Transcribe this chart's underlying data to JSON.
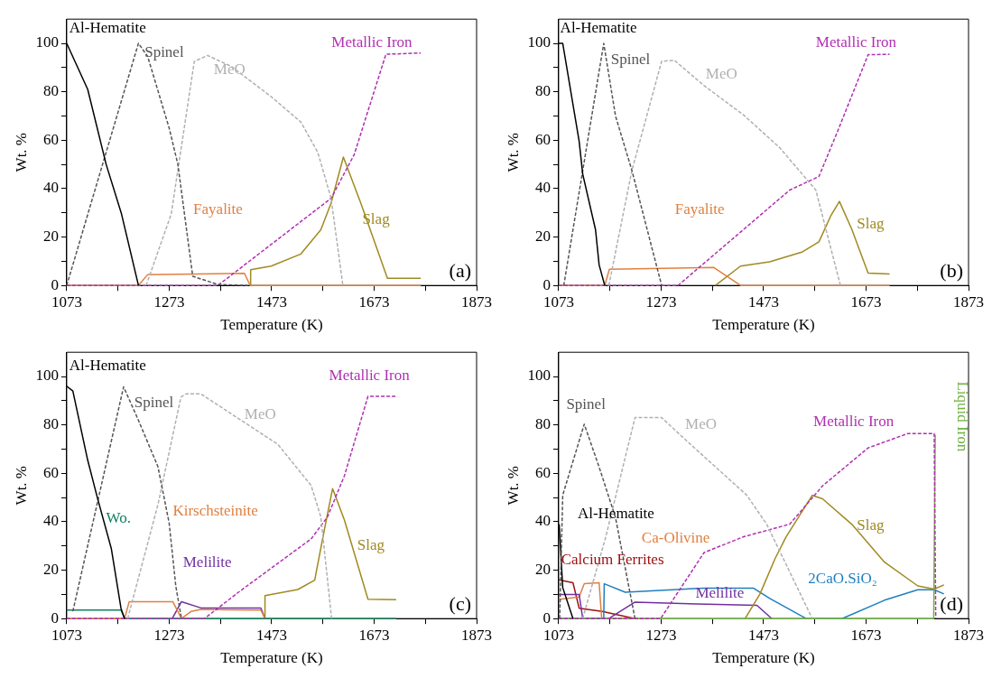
{
  "chart_data": [
    {
      "type": "line",
      "xlabel": "Temperature (K)",
      "ylabel": "Wt. %",
      "xlim": [
        1073,
        1873
      ],
      "ylim": [
        0,
        110
      ],
      "xticks": [
        1073,
        {
          "value": 1173,
          "label": null
        },
        1273,
        {
          "value": 1373,
          "label": null
        },
        1473,
        {
          "value": 1573,
          "label": null
        },
        1673,
        {
          "value": 1773,
          "label": null
        },
        1873
      ],
      "yticks": [
        0,
        {
          "value": 10,
          "label": null
        },
        20,
        {
          "value": 30,
          "label": null
        },
        40,
        {
          "value": 50,
          "label": null
        },
        60,
        {
          "value": 70,
          "label": null
        },
        80,
        {
          "value": 90,
          "label": null
        },
        100
      ],
      "grid": false,
      "marker": "none",
      "annotations": [
        "(a)"
      ],
      "series": [
        {
          "name": "Al-Hematite",
          "color": "#000000",
          "line_style": "solid",
          "x": [
            1073,
            1114,
            1150,
            1180,
            1213
          ],
          "values": [
            100,
            81,
            50,
            29.5,
            0
          ]
        },
        {
          "name": "Spinel",
          "color": "#555555",
          "line_style": "dashed",
          "x": [
            1073,
            1213,
            1231,
            1273,
            1290,
            1319,
            1368,
            1426
          ],
          "values": [
            0,
            100,
            94.6,
            65,
            50,
            3.8,
            0.4,
            0
          ]
        },
        {
          "name": "MeO",
          "color": "#b0b0b0",
          "line_style": "dashed",
          "x": [
            1228,
            1277,
            1322,
            1348,
            1394,
            1472,
            1530,
            1563,
            1589,
            1612
          ],
          "values": [
            0,
            29.5,
            92.5,
            95,
            90.5,
            78,
            67.5,
            55,
            36,
            0
          ]
        },
        {
          "name": "Metallic Iron",
          "color": "#b030b0",
          "line_style": "dashed",
          "x": [
            1073,
            1368,
            1589,
            1634,
            1696,
            1764
          ],
          "values": [
            0,
            0,
            36,
            54,
            95.5,
            96
          ]
        },
        {
          "name": "Fayalite",
          "color": "#e08040",
          "line_style": "solid",
          "x": [
            1073,
            1213,
            1231,
            1420,
            1431,
            1764
          ],
          "values": [
            0,
            0,
            4.5,
            5,
            0,
            0
          ]
        },
        {
          "name": "Slag",
          "color": "#a08a20",
          "line_style": "solid",
          "x": [
            1431,
            1432,
            1472,
            1530,
            1569,
            1589,
            1613,
            1647,
            1699,
            1764
          ],
          "values": [
            0,
            6.5,
            8,
            13,
            23,
            34,
            53,
            34,
            3,
            3
          ]
        }
      ]
    },
    {
      "type": "line",
      "xlabel": "Temperature (K)",
      "ylabel": "Wt. %",
      "xlim": [
        1073,
        1873
      ],
      "ylim": [
        0,
        110
      ],
      "xticks": [
        1073,
        {
          "value": 1173,
          "label": null
        },
        1273,
        {
          "value": 1373,
          "label": null
        },
        1473,
        {
          "value": 1573,
          "label": null
        },
        1673,
        {
          "value": 1773,
          "label": null
        },
        1873
      ],
      "yticks": [
        0,
        {
          "value": 10,
          "label": null
        },
        20,
        {
          "value": 30,
          "label": null
        },
        40,
        {
          "value": 50,
          "label": null
        },
        60,
        {
          "value": 70,
          "label": null
        },
        80,
        {
          "value": 90,
          "label": null
        },
        100
      ],
      "grid": false,
      "marker": "none",
      "annotations": [
        "(b)"
      ],
      "series": [
        {
          "name": "Al-Hematite",
          "color": "#000000",
          "line_style": "solid",
          "x": [
            1073,
            1081,
            1113,
            1120,
            1145,
            1152,
            1163
          ],
          "values": [
            100,
            100,
            59.6,
            46,
            23,
            8.5,
            0
          ]
        },
        {
          "name": "Spinel",
          "color": "#555555",
          "line_style": "dashed",
          "x": [
            1083,
            1161,
            1184,
            1216,
            1274
          ],
          "values": [
            0,
            100,
            70,
            47.5,
            0
          ]
        },
        {
          "name": "MeO",
          "color": "#b0b0b0",
          "line_style": "dashed",
          "x": [
            1171,
            1216,
            1274,
            1299,
            1357,
            1434,
            1504,
            1575,
            1623
          ],
          "values": [
            0,
            47.5,
            92.6,
            93,
            82.5,
            70.4,
            57,
            39.4,
            0
          ]
        },
        {
          "name": "Metallic Iron",
          "color": "#b030b0",
          "line_style": "dashed",
          "x": [
            1073,
            1306,
            1524,
            1581,
            1620,
            1677,
            1719
          ],
          "values": [
            0,
            0,
            39.4,
            45,
            65,
            95.3,
            95.5
          ]
        },
        {
          "name": "Fayalite",
          "color": "#e08040",
          "line_style": "solid",
          "x": [
            1073,
            1163,
            1172,
            1376,
            1428,
            1719
          ],
          "values": [
            0,
            0,
            6.7,
            7.4,
            0,
            0
          ]
        },
        {
          "name": "Slag",
          "color": "#a08a20",
          "line_style": "solid",
          "x": [
            1379,
            1428,
            1485,
            1549,
            1581,
            1604,
            1621,
            1645,
            1677,
            1719
          ],
          "values": [
            0,
            8,
            9.8,
            13.9,
            18,
            28.7,
            34.7,
            23.3,
            5.1,
            4.7
          ]
        }
      ]
    },
    {
      "type": "line",
      "xlabel": "Temperature (K)",
      "ylabel": "Wt. %",
      "xlim": [
        1073,
        1873
      ],
      "ylim": [
        0,
        110
      ],
      "xticks": [
        1073,
        {
          "value": 1173,
          "label": null
        },
        1273,
        {
          "value": 1373,
          "label": null
        },
        1473,
        {
          "value": 1573,
          "label": null
        },
        1673,
        {
          "value": 1773,
          "label": null
        },
        1873
      ],
      "yticks": [
        0,
        {
          "value": 10,
          "label": null
        },
        20,
        {
          "value": 30,
          "label": null
        },
        40,
        {
          "value": 50,
          "label": null
        },
        60,
        {
          "value": 70,
          "label": null
        },
        80,
        {
          "value": 90,
          "label": null
        },
        100
      ],
      "grid": false,
      "marker": "none",
      "annotations": [
        "(c)"
      ],
      "series": [
        {
          "name": "Al-Hematite",
          "color": "#000000",
          "line_style": "solid",
          "x": [
            1073,
            1085,
            1114,
            1133,
            1160,
            1179,
            1186
          ],
          "values": [
            96,
            94,
            65.4,
            49.8,
            29,
            4.2,
            0
          ]
        },
        {
          "name": "Spinel",
          "color": "#555555",
          "line_style": "dashed",
          "x": [
            1085,
            1184,
            1212,
            1251,
            1273,
            1286,
            1297
          ],
          "values": [
            3,
            95.7,
            82.4,
            62.8,
            39.4,
            13.3,
            0
          ]
        },
        {
          "name": "MeO",
          "color": "#b0b0b0",
          "line_style": "dashed",
          "x": [
            1192,
            1251,
            1296,
            1306,
            1335,
            1420,
            1485,
            1550,
            1569,
            1589,
            1590
          ],
          "values": [
            0,
            47,
            91.5,
            92.8,
            92.8,
            81,
            72,
            55,
            42,
            2,
            0
          ]
        },
        {
          "name": "Metallic Iron",
          "color": "#b030b0",
          "line_style": "dashed",
          "x": [
            1073,
            1342,
            1407,
            1550,
            1582,
            1615,
            1661,
            1716
          ],
          "values": [
            0,
            0,
            10.7,
            32.9,
            42,
            59,
            91.8,
            91.8
          ]
        },
        {
          "name": "Wo.",
          "color": "#108060",
          "line_style": "solid",
          "x": [
            1073,
            1179,
            1186,
            1716
          ],
          "values": [
            3.5,
            3.5,
            0,
            0
          ]
        },
        {
          "name": "Kirschsteinite",
          "color": "#e08040",
          "line_style": "solid",
          "x": [
            1073,
            1186,
            1195,
            1280,
            1297,
            1316,
            1335,
            1452,
            1460,
            1716
          ],
          "values": [
            0,
            0,
            7,
            7,
            0,
            3,
            3.8,
            3.5,
            0,
            0
          ]
        },
        {
          "name": "Melilite",
          "color": "#7030a0",
          "line_style": "solid",
          "x": [
            1279,
            1297,
            1335,
            1452,
            1460
          ],
          "values": [
            0,
            7,
            4.4,
            4.4,
            0
          ]
        },
        {
          "name": "Slag",
          "color": "#a08a20",
          "line_style": "solid",
          "x": [
            1459,
            1460,
            1524,
            1557,
            1576,
            1592,
            1615,
            1661,
            1716
          ],
          "values": [
            0,
            9.5,
            12,
            15.9,
            36.8,
            53.7,
            40.7,
            8,
            7.8
          ]
        }
      ]
    },
    {
      "type": "line",
      "xlabel": "Temperature (K)",
      "ylabel": "Wt. %",
      "xlim": [
        1073,
        1873
      ],
      "ylim": [
        0,
        110
      ],
      "xticks": [
        1073,
        {
          "value": 1173,
          "label": null
        },
        1273,
        {
          "value": 1373,
          "label": null
        },
        1473,
        {
          "value": 1573,
          "label": null
        },
        1673,
        {
          "value": 1773,
          "label": null
        },
        1873
      ],
      "yticks": [
        0,
        {
          "value": 10,
          "label": null
        },
        20,
        {
          "value": 30,
          "label": null
        },
        40,
        {
          "value": 50,
          "label": null
        },
        60,
        {
          "value": 70,
          "label": null
        },
        80,
        {
          "value": 90,
          "label": null
        },
        100
      ],
      "grid": false,
      "marker": "none",
      "annotations": [
        "(d)"
      ],
      "series": [
        {
          "name": "Spinel",
          "color": "#555555",
          "line_style": "dashed",
          "x": [
            1075,
            1081,
            1123,
            1152,
            1184,
            1222
          ],
          "values": [
            0,
            51,
            80.3,
            62.6,
            41.7,
            0
          ]
        },
        {
          "name": "MeO",
          "color": "#b0b0b0",
          "line_style": "dashed",
          "x": [
            1120,
            1165,
            1222,
            1274,
            1325,
            1440,
            1479,
            1568
          ],
          "values": [
            0,
            33.8,
            83,
            83,
            73,
            51,
            39,
            0
          ]
        },
        {
          "name": "Al-Hematite",
          "color": "#000000",
          "line_style": "solid",
          "x": [
            1074,
            1081,
            1101
          ],
          "values": [
            39,
            12.8,
            0
          ]
        },
        {
          "name": "Metallic Iron",
          "color": "#b030b0",
          "line_style": "dashed",
          "x": [
            1073,
            1272,
            1357,
            1434,
            1524,
            1588,
            1677,
            1754,
            1806,
            1809
          ],
          "values": [
            0,
            0,
            27.3,
            33.8,
            39,
            54.8,
            70.5,
            76.4,
            76.4,
            0
          ]
        },
        {
          "name": "Liquid Iron",
          "color": "#70b040",
          "line_style": "solid",
          "x": [
            1073,
            1805,
            1808
          ],
          "values": [
            0,
            0,
            76
          ]
        },
        {
          "name": "Slag",
          "color": "#a08a20",
          "line_style": "solid",
          "x": [
            1437,
            1466,
            1495,
            1517,
            1568,
            1588,
            1645,
            1709,
            1774,
            1806,
            1825
          ],
          "values": [
            0,
            10.2,
            24.6,
            33.8,
            50.9,
            49.5,
            39,
            23.3,
            13.5,
            12.2,
            13.9
          ]
        },
        {
          "name": "2CaO.SiO₂",
          "color": "#1f7fbf",
          "line_style": "solid",
          "x": [
            1073,
            1161,
            1162,
            1203,
            1357,
            1453,
            1485,
            1556,
            1626,
            1709,
            1774,
            1806,
            1825
          ],
          "values": [
            0,
            0,
            14.4,
            10.9,
            12.6,
            12.6,
            8.3,
            0,
            0,
            7.6,
            11.9,
            11.9,
            10.2
          ]
        },
        {
          "name": "Melilite",
          "color": "#7030a0",
          "line_style": "solid",
          "x": [
            1073,
            1113,
            1120,
            1171,
            1222,
            1344,
            1460,
            1489
          ],
          "values": [
            10,
            10,
            0,
            0,
            6.8,
            6,
            5.5,
            0
          ]
        },
        {
          "name": "Ca-Olivine",
          "color": "#e08040",
          "line_style": "solid",
          "x": [
            1073,
            1113,
            1123,
            1152,
            1157
          ],
          "values": [
            7.9,
            8.9,
            14.4,
            14.8,
            0
          ]
        },
        {
          "name": "Calcium Ferrites",
          "color": "#a01010",
          "line_style": "solid",
          "x": [
            1073,
            1101,
            1113,
            1158,
            1222
          ],
          "values": [
            16,
            14.8,
            4.3,
            3,
            0
          ]
        }
      ]
    }
  ]
}
